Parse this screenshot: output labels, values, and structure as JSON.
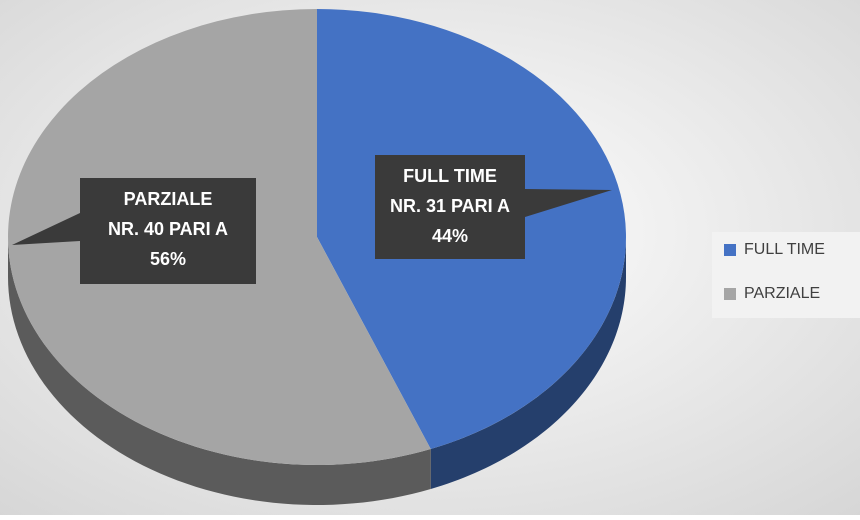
{
  "chart_data": {
    "type": "pie",
    "categories": [
      "FULL TIME",
      "PARZIALE"
    ],
    "values": [
      44,
      56
    ],
    "value_labels": [
      [
        "FULL TIME",
        "NR. 31  PARI A",
        "44%"
      ],
      [
        "PARZIALE",
        "NR. 40 PARI  A",
        "56%"
      ]
    ],
    "colors": [
      "#4472c4",
      "#a5a5a5"
    ],
    "legend": "right"
  }
}
